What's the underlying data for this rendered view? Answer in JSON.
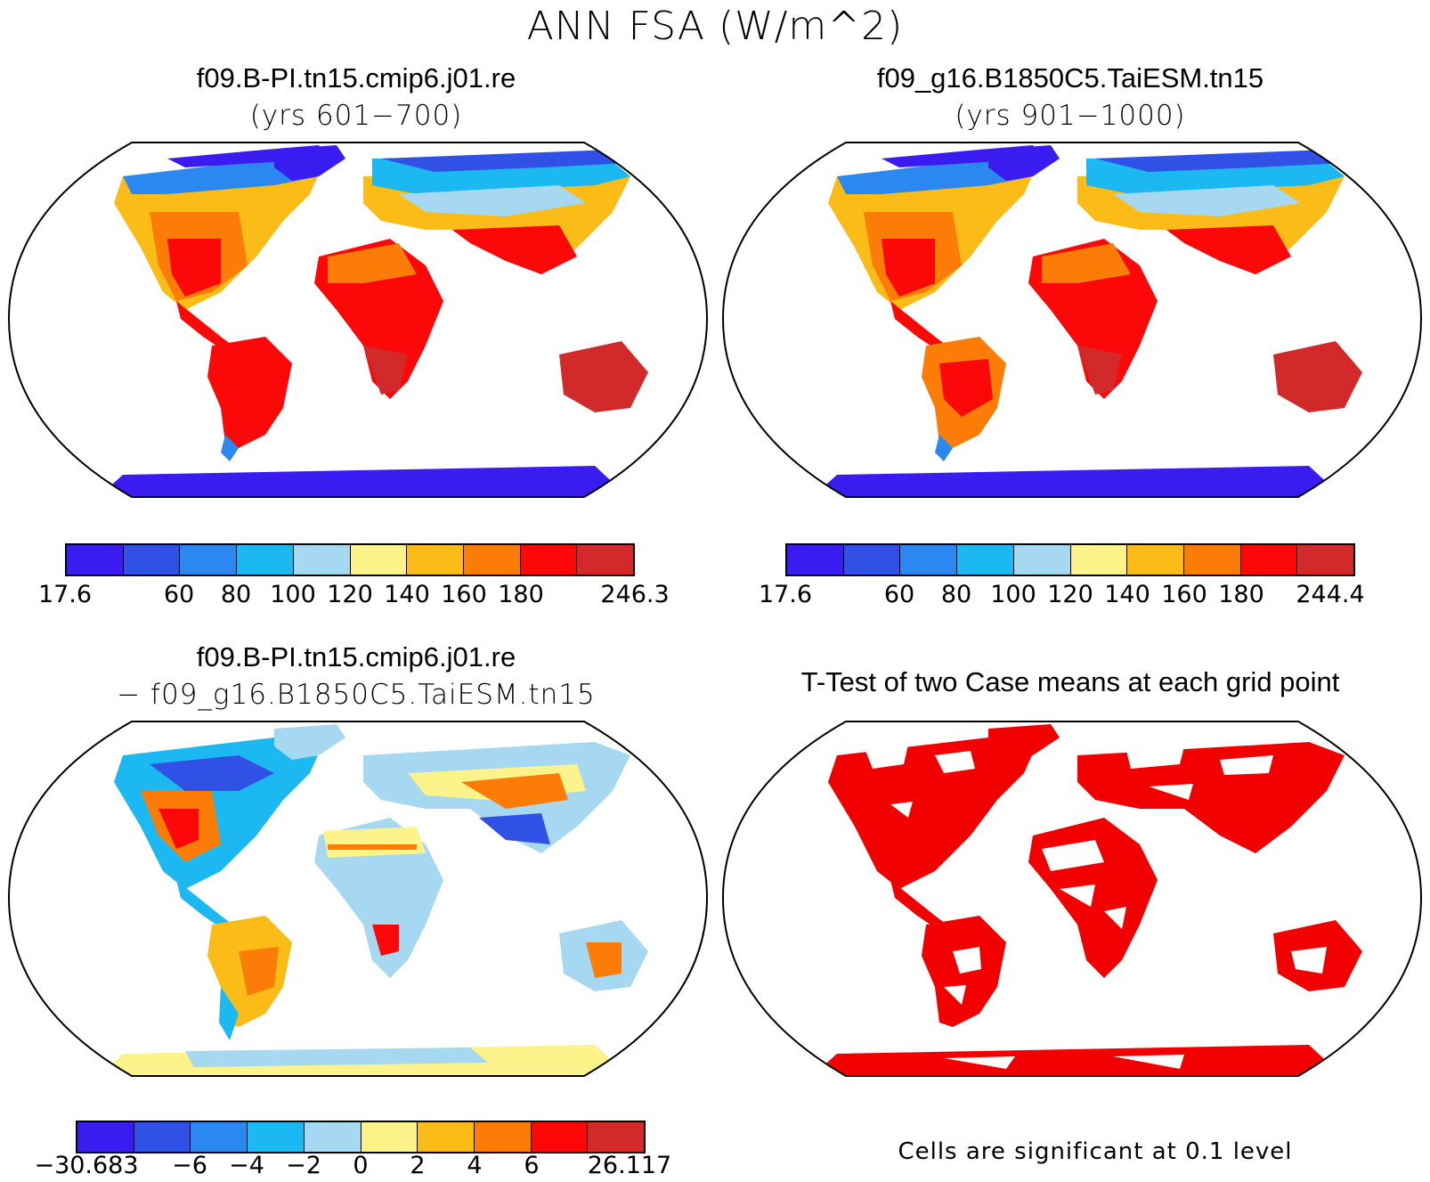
{
  "main_title": "ANN FSA (W/m^2)",
  "panels": [
    {
      "id": "case1",
      "title": "f09.B-PI.tn15.cmip6.j01.re",
      "subtitle": "(yrs 601−700)",
      "colorbar": {
        "colors": [
          "#3a1bf0",
          "#3050e6",
          "#2a88f0",
          "#1cb8f2",
          "#a6d8f2",
          "#fdf38a",
          "#fcbc18",
          "#fc7c08",
          "#fc0808",
          "#d22a2a"
        ],
        "tick_labels": [
          "17.6",
          "60",
          "80",
          "100",
          "120",
          "140",
          "160",
          "180",
          "246.3"
        ]
      }
    },
    {
      "id": "case2",
      "title": "f09_g16.B1850C5.TaiESM.tn15",
      "subtitle": "(yrs 901−1000)",
      "colorbar": {
        "colors": [
          "#3a1bf0",
          "#3050e6",
          "#2a88f0",
          "#1cb8f2",
          "#a6d8f2",
          "#fdf38a",
          "#fcbc18",
          "#fc7c08",
          "#fc0808",
          "#d22a2a"
        ],
        "tick_labels": [
          "17.6",
          "60",
          "80",
          "100",
          "120",
          "140",
          "160",
          "180",
          "244.4"
        ]
      }
    },
    {
      "id": "difference",
      "title": "f09.B-PI.tn15.cmip6.j01.re",
      "subtitle": "− f09_g16.B1850C5.TaiESM.tn15",
      "colorbar": {
        "colors": [
          "#3a1bf0",
          "#3050e6",
          "#2a88f0",
          "#1cb8f2",
          "#a6d8f2",
          "#fdf38a",
          "#fcbc18",
          "#fc7c08",
          "#fc0808",
          "#d22a2a"
        ],
        "tick_labels": [
          "−30.683",
          "−6",
          "−4",
          "−2",
          "0",
          "2",
          "4",
          "6",
          "26.117"
        ]
      }
    },
    {
      "id": "ttest",
      "title": "T-Test of two Case means at each grid point",
      "footnote": "Cells are significant at 0.1 level",
      "significance_color": "#f20000"
    }
  ]
}
